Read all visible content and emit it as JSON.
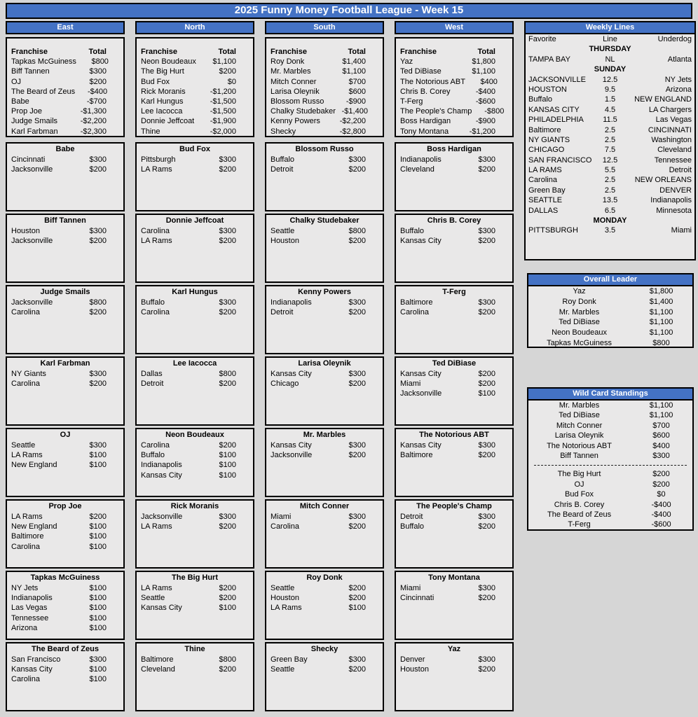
{
  "title": "2025 Funny Money Football League - Week 15",
  "colors": {
    "accent_blue": "#4472c4",
    "page_bg": "#d6d6d6",
    "panel_bg": "#e9e8e8",
    "border": "#000000",
    "header_text": "#ffffff"
  },
  "labels": {
    "franchise": "Franchise",
    "total": "Total"
  },
  "divisions": [
    {
      "name": "East",
      "standings": [
        {
          "franchise": "Tapkas McGuiness",
          "total": "$800"
        },
        {
          "franchise": "Biff Tannen",
          "total": "$300"
        },
        {
          "franchise": "OJ",
          "total": "$200"
        },
        {
          "franchise": "The Beard of Zeus",
          "total": "-$400"
        },
        {
          "franchise": "Babe",
          "total": "-$700"
        },
        {
          "franchise": "Prop Joe",
          "total": "-$1,300"
        },
        {
          "franchise": "Judge Smails",
          "total": "-$2,200"
        },
        {
          "franchise": "Karl Farbman",
          "total": "-$2,300"
        }
      ],
      "boxes": [
        {
          "name": "Babe",
          "picks": [
            {
              "team": "Cincinnati",
              "amount": "$300"
            },
            {
              "team": "Jacksonville",
              "amount": "$200"
            }
          ]
        },
        {
          "name": "Biff Tannen",
          "picks": [
            {
              "team": "Houston",
              "amount": "$300"
            },
            {
              "team": "Jacksonville",
              "amount": "$200"
            }
          ]
        },
        {
          "name": "Judge Smails",
          "picks": [
            {
              "team": "Jacksonville",
              "amount": "$800"
            },
            {
              "team": "Carolina",
              "amount": "$200"
            }
          ]
        },
        {
          "name": "Karl Farbman",
          "picks": [
            {
              "team": "NY Giants",
              "amount": "$300"
            },
            {
              "team": "Carolina",
              "amount": "$200"
            }
          ]
        },
        {
          "name": "OJ",
          "picks": [
            {
              "team": "Seattle",
              "amount": "$300"
            },
            {
              "team": "LA Rams",
              "amount": "$100"
            },
            {
              "team": "New England",
              "amount": "$100"
            }
          ]
        },
        {
          "name": "Prop Joe",
          "picks": [
            {
              "team": "LA Rams",
              "amount": "$200"
            },
            {
              "team": "New England",
              "amount": "$100"
            },
            {
              "team": "Baltimore",
              "amount": "$100"
            },
            {
              "team": "Carolina",
              "amount": "$100"
            }
          ]
        },
        {
          "name": "Tapkas McGuiness",
          "picks": [
            {
              "team": "NY Jets",
              "amount": "$100"
            },
            {
              "team": "Indianapolis",
              "amount": "$100"
            },
            {
              "team": "Las Vegas",
              "amount": "$100"
            },
            {
              "team": "Tennessee",
              "amount": "$100"
            },
            {
              "team": "Arizona",
              "amount": "$100"
            }
          ]
        },
        {
          "name": "The Beard of Zeus",
          "picks": [
            {
              "team": "San Francisco",
              "amount": "$300"
            },
            {
              "team": "Kansas City",
              "amount": "$100"
            },
            {
              "team": "Carolina",
              "amount": "$100"
            }
          ]
        }
      ]
    },
    {
      "name": "North",
      "standings": [
        {
          "franchise": "Neon Boudeaux",
          "total": "$1,100"
        },
        {
          "franchise": "The Big Hurt",
          "total": "$200"
        },
        {
          "franchise": "Bud Fox",
          "total": "$0"
        },
        {
          "franchise": "Rick Moranis",
          "total": "-$1,200"
        },
        {
          "franchise": "Karl Hungus",
          "total": "-$1,500"
        },
        {
          "franchise": "Lee Iacocca",
          "total": "-$1,500"
        },
        {
          "franchise": "Donnie Jeffcoat",
          "total": "-$1,900"
        },
        {
          "franchise": "Thine",
          "total": "-$2,000"
        }
      ],
      "boxes": [
        {
          "name": "Bud Fox",
          "picks": [
            {
              "team": "Pittsburgh",
              "amount": "$300"
            },
            {
              "team": "LA Rams",
              "amount": "$200"
            }
          ]
        },
        {
          "name": "Donnie Jeffcoat",
          "picks": [
            {
              "team": "Carolina",
              "amount": "$300"
            },
            {
              "team": "LA Rams",
              "amount": "$200"
            }
          ]
        },
        {
          "name": "Karl Hungus",
          "picks": [
            {
              "team": "Buffalo",
              "amount": "$300"
            },
            {
              "team": "Carolina",
              "amount": "$200"
            }
          ]
        },
        {
          "name": "Lee Iacocca",
          "picks": [
            {
              "team": "Dallas",
              "amount": "$800"
            },
            {
              "team": "Detroit",
              "amount": "$200"
            }
          ]
        },
        {
          "name": "Neon Boudeaux",
          "picks": [
            {
              "team": "Carolina",
              "amount": "$200"
            },
            {
              "team": "Buffalo",
              "amount": "$100"
            },
            {
              "team": "Indianapolis",
              "amount": "$100"
            },
            {
              "team": "Kansas City",
              "amount": "$100"
            }
          ]
        },
        {
          "name": "Rick Moranis",
          "picks": [
            {
              "team": "Jacksonville",
              "amount": "$300"
            },
            {
              "team": "LA Rams",
              "amount": "$200"
            }
          ]
        },
        {
          "name": "The Big Hurt",
          "picks": [
            {
              "team": "LA Rams",
              "amount": "$200"
            },
            {
              "team": "Seattle",
              "amount": "$200"
            },
            {
              "team": "Kansas City",
              "amount": "$100"
            }
          ]
        },
        {
          "name": "Thine",
          "picks": [
            {
              "team": "Baltimore",
              "amount": "$800"
            },
            {
              "team": "Cleveland",
              "amount": "$200"
            }
          ]
        }
      ]
    },
    {
      "name": "South",
      "standings": [
        {
          "franchise": "Roy Donk",
          "total": "$1,400"
        },
        {
          "franchise": "Mr. Marbles",
          "total": "$1,100"
        },
        {
          "franchise": "Mitch Conner",
          "total": "$700"
        },
        {
          "franchise": "Larisa Oleynik",
          "total": "$600"
        },
        {
          "franchise": "Blossom Russo",
          "total": "-$900"
        },
        {
          "franchise": "Chalky Studebaker",
          "total": "-$1,400"
        },
        {
          "franchise": "Kenny Powers",
          "total": "-$2,200"
        },
        {
          "franchise": "Shecky",
          "total": "-$2,800"
        }
      ],
      "boxes": [
        {
          "name": "Blossom Russo",
          "picks": [
            {
              "team": "Buffalo",
              "amount": "$300"
            },
            {
              "team": "Detroit",
              "amount": "$200"
            }
          ]
        },
        {
          "name": "Chalky Studebaker",
          "picks": [
            {
              "team": "Seattle",
              "amount": "$800"
            },
            {
              "team": "Houston",
              "amount": "$200"
            }
          ]
        },
        {
          "name": "Kenny Powers",
          "picks": [
            {
              "team": "Indianapolis",
              "amount": "$300"
            },
            {
              "team": "Detroit",
              "amount": "$200"
            }
          ]
        },
        {
          "name": "Larisa Oleynik",
          "picks": [
            {
              "team": "Kansas City",
              "amount": "$300"
            },
            {
              "team": "Chicago",
              "amount": "$200"
            }
          ]
        },
        {
          "name": "Mr. Marbles",
          "picks": [
            {
              "team": "Kansas City",
              "amount": "$300"
            },
            {
              "team": "Jacksonville",
              "amount": "$200"
            }
          ]
        },
        {
          "name": "Mitch Conner",
          "picks": [
            {
              "team": "Miami",
              "amount": "$300"
            },
            {
              "team": "Carolina",
              "amount": "$200"
            }
          ]
        },
        {
          "name": "Roy Donk",
          "picks": [
            {
              "team": "Seattle",
              "amount": "$200"
            },
            {
              "team": "Houston",
              "amount": "$200"
            },
            {
              "team": "LA Rams",
              "amount": "$100"
            }
          ]
        },
        {
          "name": "Shecky",
          "picks": [
            {
              "team": "Green Bay",
              "amount": "$300"
            },
            {
              "team": "Seattle",
              "amount": "$200"
            }
          ]
        }
      ]
    },
    {
      "name": "West",
      "standings": [
        {
          "franchise": "Yaz",
          "total": "$1,800"
        },
        {
          "franchise": "Ted DiBiase",
          "total": "$1,100"
        },
        {
          "franchise": "The Notorious ABT",
          "total": "$400"
        },
        {
          "franchise": "Chris B. Corey",
          "total": "-$400"
        },
        {
          "franchise": "T-Ferg",
          "total": "-$600"
        },
        {
          "franchise": "The People's Champ",
          "total": "-$800"
        },
        {
          "franchise": "Boss Hardigan",
          "total": "-$900"
        },
        {
          "franchise": "Tony Montana",
          "total": "-$1,200"
        }
      ],
      "boxes": [
        {
          "name": "Boss Hardigan",
          "picks": [
            {
              "team": "Indianapolis",
              "amount": "$300"
            },
            {
              "team": "Cleveland",
              "amount": "$200"
            }
          ]
        },
        {
          "name": "Chris B. Corey",
          "picks": [
            {
              "team": "Buffalo",
              "amount": "$300"
            },
            {
              "team": "Kansas City",
              "amount": "$200"
            }
          ]
        },
        {
          "name": "T-Ferg",
          "picks": [
            {
              "team": "Baltimore",
              "amount": "$300"
            },
            {
              "team": "Carolina",
              "amount": "$200"
            }
          ]
        },
        {
          "name": "Ted DiBiase",
          "picks": [
            {
              "team": "Kansas City",
              "amount": "$200"
            },
            {
              "team": "Miami",
              "amount": "$200"
            },
            {
              "team": "Jacksonville",
              "amount": "$100"
            }
          ]
        },
        {
          "name": "The Notorious ABT",
          "picks": [
            {
              "team": "Kansas City",
              "amount": "$300"
            },
            {
              "team": "Baltimore",
              "amount": "$200"
            }
          ]
        },
        {
          "name": "The People's Champ",
          "picks": [
            {
              "team": "Detroit",
              "amount": "$300"
            },
            {
              "team": "Buffalo",
              "amount": "$200"
            }
          ]
        },
        {
          "name": "Tony Montana",
          "picks": [
            {
              "team": "Miami",
              "amount": "$300"
            },
            {
              "team": "Cincinnati",
              "amount": "$200"
            }
          ]
        },
        {
          "name": "Yaz",
          "picks": [
            {
              "team": "Denver",
              "amount": "$300"
            },
            {
              "team": "Houston",
              "amount": "$200"
            }
          ]
        }
      ]
    }
  ],
  "weekly_lines": {
    "title": "Weekly Lines",
    "headers": {
      "favorite": "Favorite",
      "line": "Line",
      "underdog": "Underdog"
    },
    "rows": [
      {
        "day": "THURSDAY"
      },
      {
        "favorite": "TAMPA BAY",
        "line": "NL",
        "underdog": "Atlanta"
      },
      {
        "day": "SUNDAY"
      },
      {
        "favorite": "JACKSONVILLE",
        "line": "12.5",
        "underdog": "NY Jets"
      },
      {
        "favorite": "HOUSTON",
        "line": "9.5",
        "underdog": "Arizona"
      },
      {
        "favorite": "Buffalo",
        "line": "1.5",
        "underdog": "NEW ENGLAND"
      },
      {
        "favorite": "KANSAS CITY",
        "line": "4.5",
        "underdog": "LA Chargers"
      },
      {
        "favorite": "PHILADELPHIA",
        "line": "11.5",
        "underdog": "Las Vegas"
      },
      {
        "favorite": "Baltimore",
        "line": "2.5",
        "underdog": "CINCINNATI"
      },
      {
        "favorite": "NY GIANTS",
        "line": "2.5",
        "underdog": "Washington"
      },
      {
        "favorite": "CHICAGO",
        "line": "7.5",
        "underdog": "Cleveland"
      },
      {
        "favorite": "SAN FRANCISCO",
        "line": "12.5",
        "underdog": "Tennessee"
      },
      {
        "favorite": "LA RAMS",
        "line": "5.5",
        "underdog": "Detroit"
      },
      {
        "favorite": "Carolina",
        "line": "2.5",
        "underdog": "NEW ORLEANS"
      },
      {
        "favorite": "Green Bay",
        "line": "2.5",
        "underdog": "DENVER"
      },
      {
        "favorite": "SEATTLE",
        "line": "13.5",
        "underdog": "Indianapolis"
      },
      {
        "favorite": "DALLAS",
        "line": "6.5",
        "underdog": "Minnesota"
      },
      {
        "day": "MONDAY"
      },
      {
        "favorite": "PITTSBURGH",
        "line": "3.5",
        "underdog": "Miami"
      }
    ]
  },
  "overall_leader": {
    "title": "Overall Leader",
    "rows": [
      {
        "franchise": "Yaz",
        "amount": "$1,800"
      },
      {
        "franchise": "Roy Donk",
        "amount": "$1,400"
      },
      {
        "franchise": "Mr. Marbles",
        "amount": "$1,100"
      },
      {
        "franchise": "Ted DiBiase",
        "amount": "$1,100"
      },
      {
        "franchise": "Neon Boudeaux",
        "amount": "$1,100"
      },
      {
        "franchise": "Tapkas McGuiness",
        "amount": "$800"
      }
    ]
  },
  "wild_card": {
    "title": "Wild Card Standings",
    "in_rows": [
      {
        "franchise": "Mr. Marbles",
        "amount": "$1,100"
      },
      {
        "franchise": "Ted DiBiase",
        "amount": "$1,100"
      },
      {
        "franchise": "Mitch Conner",
        "amount": "$700"
      },
      {
        "franchise": "Larisa Oleynik",
        "amount": "$600"
      },
      {
        "franchise": "The Notorious ABT",
        "amount": "$400"
      },
      {
        "franchise": "Biff Tannen",
        "amount": "$300"
      }
    ],
    "out_rows": [
      {
        "franchise": "The Big Hurt",
        "amount": "$200"
      },
      {
        "franchise": "OJ",
        "amount": "$200"
      },
      {
        "franchise": "Bud Fox",
        "amount": "$0"
      },
      {
        "franchise": "Chris B. Corey",
        "amount": "-$400"
      },
      {
        "franchise": "The Beard of Zeus",
        "amount": "-$400"
      },
      {
        "franchise": "T-Ferg",
        "amount": "-$600"
      }
    ]
  }
}
